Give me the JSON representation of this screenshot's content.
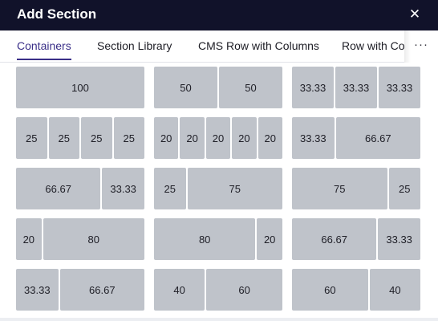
{
  "dialog": {
    "title": "Add Section",
    "close_icon": "close-icon"
  },
  "tabs": [
    {
      "label": "Containers",
      "active": true
    },
    {
      "label": "Section Library",
      "active": false
    },
    {
      "label": "CMS Row with Columns",
      "active": false
    },
    {
      "label": "Row with Co",
      "active": false
    }
  ],
  "more_label": "···",
  "layouts": [
    [
      [
        "100"
      ],
      [
        "50",
        "50"
      ],
      [
        "33.33",
        "33.33",
        "33.33"
      ]
    ],
    [
      [
        "25",
        "25",
        "25",
        "25"
      ],
      [
        "20",
        "20",
        "20",
        "20",
        "20"
      ],
      [
        "33.33",
        "66.67"
      ]
    ],
    [
      [
        "66.67",
        "33.33"
      ],
      [
        "25",
        "75"
      ],
      [
        "75",
        "25"
      ]
    ],
    [
      [
        "20",
        "80"
      ],
      [
        "80",
        "20"
      ],
      [
        "66.67",
        "33.33"
      ]
    ],
    [
      [
        "33.33",
        "66.67"
      ],
      [
        "40",
        "60"
      ],
      [
        "60",
        "40"
      ]
    ]
  ]
}
